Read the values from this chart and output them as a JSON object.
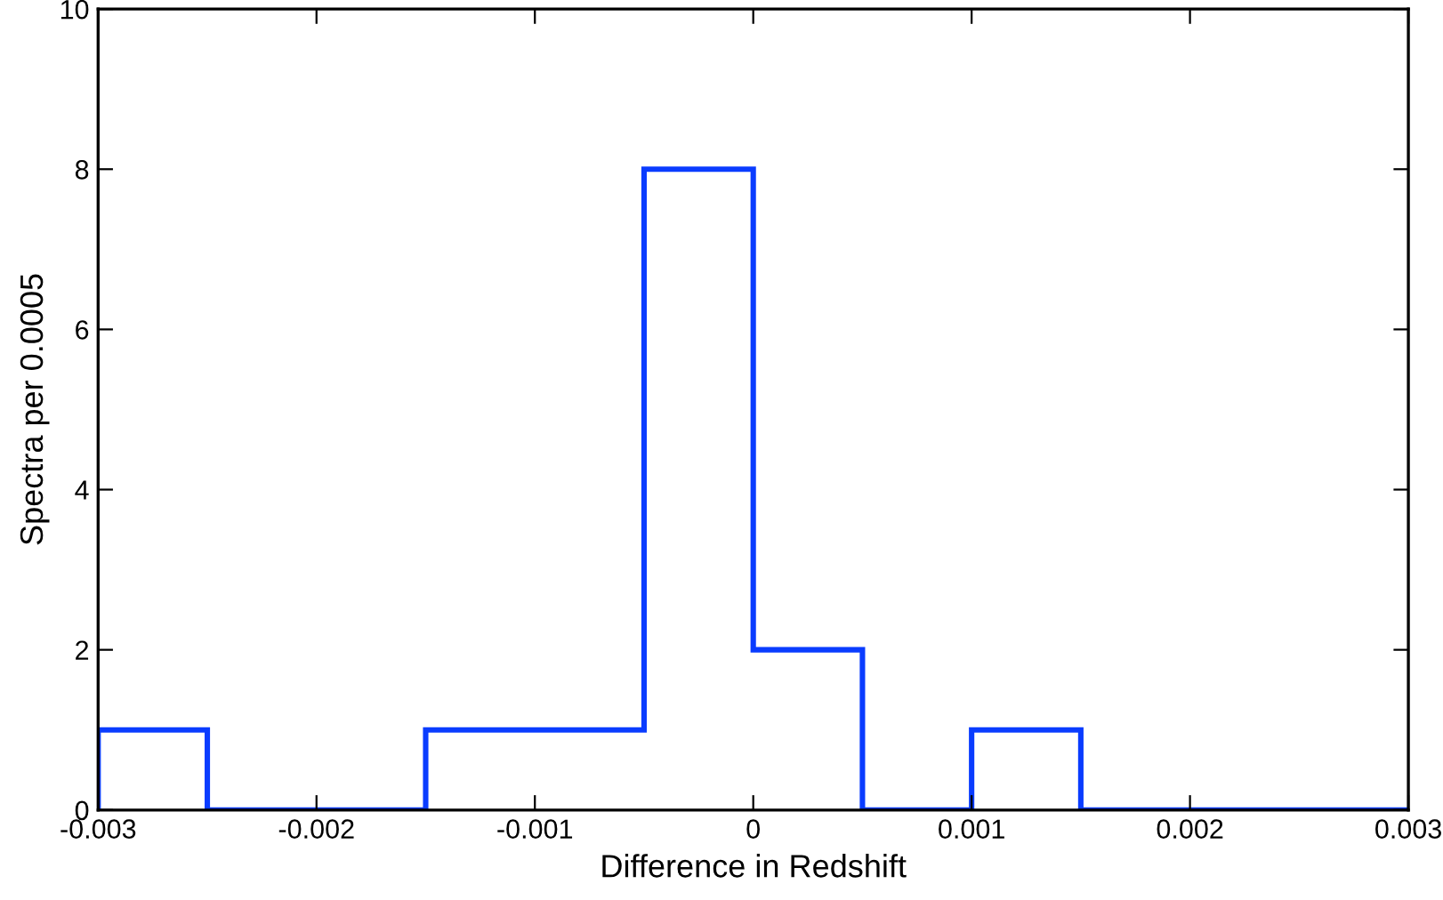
{
  "chart_data": {
    "type": "histogram",
    "xlabel": "Difference in Redshift",
    "ylabel": "Spectra per 0.0005",
    "bins": [
      -0.003,
      -0.0025,
      -0.002,
      -0.0015,
      -0.001,
      -0.0005,
      0,
      0.0005,
      0.001,
      0.0015,
      0.002,
      0.0025,
      0.003
    ],
    "values": [
      1,
      0,
      0,
      1,
      1,
      8,
      2,
      0,
      1,
      0,
      0,
      0
    ],
    "color": "#0a3cff",
    "xlim": [
      -0.003,
      0.003
    ],
    "ylim": [
      0,
      10
    ],
    "xticks": [
      -0.003,
      -0.002,
      -0.001,
      0,
      0.001,
      0.002,
      0.003
    ],
    "yticks": [
      0,
      2,
      4,
      6,
      8,
      10
    ],
    "grid": false,
    "legend": false
  }
}
